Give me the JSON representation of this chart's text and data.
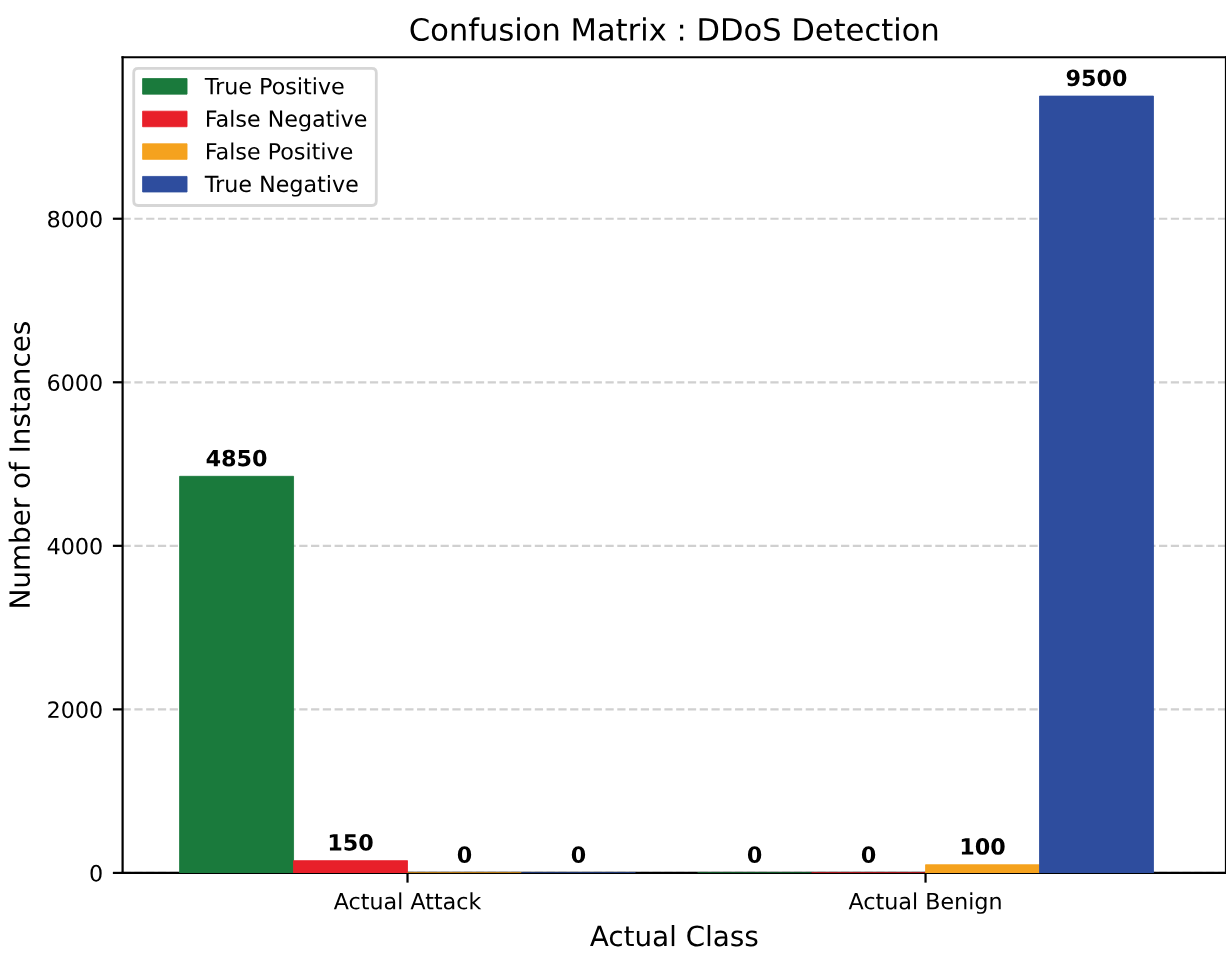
{
  "chart_data": {
    "type": "bar",
    "title": "Confusion Matrix : DDoS Detection",
    "xlabel": "Actual Class",
    "ylabel": "Number of Instances",
    "categories": [
      "Actual Attack",
      "Actual Benign"
    ],
    "series": [
      {
        "name": "True Positive",
        "color": "#1a7a3c",
        "values": [
          4850,
          0
        ]
      },
      {
        "name": "False Negative",
        "color": "#e8202a",
        "values": [
          150,
          0
        ]
      },
      {
        "name": "False Positive",
        "color": "#f5a21e",
        "values": [
          0,
          100
        ]
      },
      {
        "name": "True Negative",
        "color": "#2e4d9e",
        "values": [
          0,
          9500
        ]
      }
    ],
    "ylim": [
      0,
      9975
    ],
    "yticks": [
      0,
      2000,
      4000,
      6000,
      8000
    ],
    "grid": "y",
    "legend": "top left",
    "data_labels": true
  }
}
